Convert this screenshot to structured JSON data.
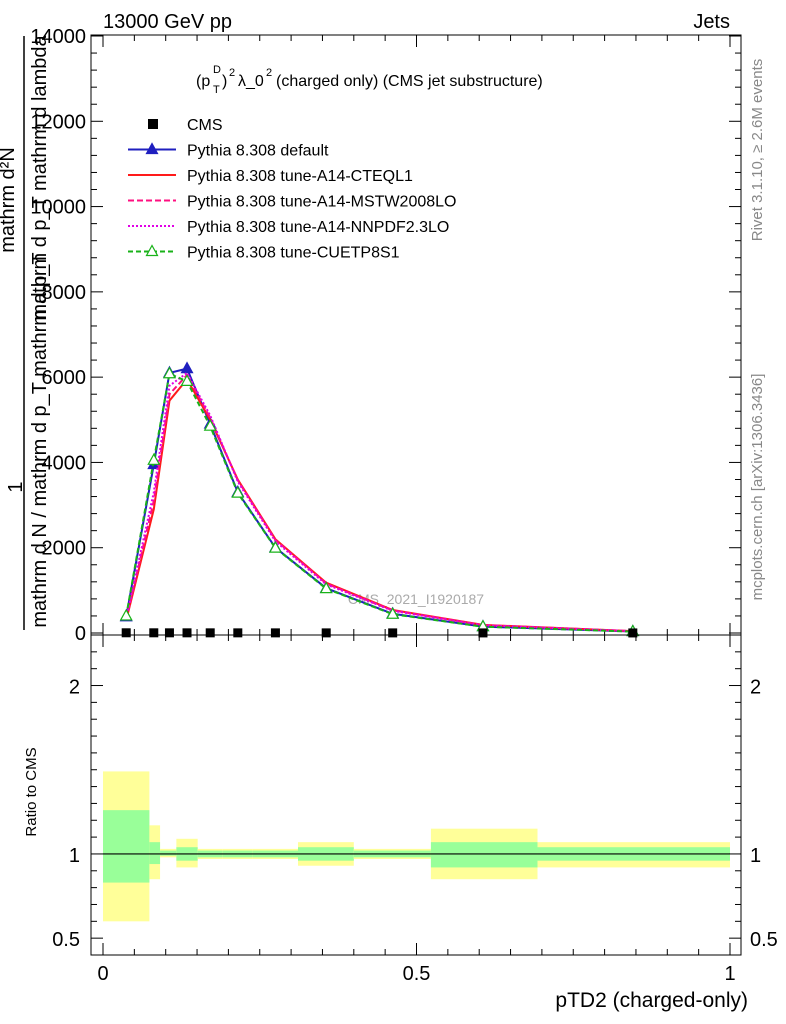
{
  "header": {
    "left": "13000 GeV pp",
    "right": "Jets"
  },
  "side_labels": {
    "rivet": "Rivet 3.1.10, ≥ 2.6M events",
    "mcplots": "mcplots.cern.ch [arXiv:1306.3436]"
  },
  "ylabel_main": {
    "numerator_one": "1",
    "numerator_frac": "mathrm d²N",
    "numerator_tail": "mathrm d p_T mathrm d lambda",
    "denominator": "mathrm d N / mathrm d p_T mathrm d p_T"
  },
  "chart_data": [
    {
      "type": "line",
      "title": "(p_T^D)^2 λ_0^2 (charged only) (CMS jet substructure)",
      "watermark": "CMS_2021_I1920187",
      "xlim": [
        0,
        1
      ],
      "ylim": [
        0,
        14000
      ],
      "yticks": [
        {
          "value": 0,
          "label": "0"
        },
        {
          "value": 2000,
          "label": "2000"
        },
        {
          "value": 4000,
          "label": "4000"
        },
        {
          "value": 6000,
          "label": "6000"
        },
        {
          "value": 8000,
          "label": "8000"
        },
        {
          "value": 10000,
          "label": "10000"
        },
        {
          "value": 12000,
          "label": "12000"
        },
        {
          "value": 14000,
          "label": "14000"
        }
      ],
      "legend_position": "top-left",
      "data_points": {
        "name": "CMS",
        "x": [
          0.037,
          0.081,
          0.106,
          0.134,
          0.171,
          0.215,
          0.275,
          0.356,
          0.462,
          0.606,
          0.845
        ],
        "y": [
          5.0,
          4.5,
          4.2,
          4.0,
          3.8,
          3.5,
          3.2,
          2.8,
          2.5,
          2.0,
          1.5
        ]
      },
      "series": [
        {
          "name": "Pythia 8.308 default",
          "color": "#1f1fbf",
          "dash": "solid",
          "marker": "triangle-filled",
          "x": [
            0.037,
            0.081,
            0.106,
            0.134,
            0.171,
            0.215,
            0.275,
            0.356,
            0.462,
            0.606,
            0.845
          ],
          "y": [
            380,
            3950,
            6100,
            6200,
            4900,
            3300,
            2000,
            1050,
            450,
            150,
            35
          ]
        },
        {
          "name": "Pythia 8.308 tune-A14-CTEQL1",
          "color": "#ff1a1a",
          "dash": "solid",
          "marker": "none",
          "x": [
            0.037,
            0.081,
            0.106,
            0.134,
            0.171,
            0.215,
            0.275,
            0.356,
            0.462,
            0.606,
            0.845
          ],
          "y": [
            300,
            2900,
            5450,
            5950,
            5000,
            3600,
            2200,
            1180,
            540,
            190,
            45
          ]
        },
        {
          "name": "Pythia 8.308 tune-A14-MSTW2008LO",
          "color": "#ff0f80",
          "dash": "6,3",
          "marker": "none",
          "x": [
            0.037,
            0.081,
            0.106,
            0.134,
            0.171,
            0.215,
            0.275,
            0.356,
            0.462,
            0.606,
            0.845
          ],
          "y": [
            320,
            3100,
            5600,
            6050,
            5050,
            3580,
            2180,
            1160,
            530,
            185,
            44
          ]
        },
        {
          "name": "Pythia 8.308 tune-A14-NNPDF2.3LO",
          "color": "#e100e6",
          "dash": "2,2",
          "marker": "none",
          "x": [
            0.037,
            0.081,
            0.106,
            0.134,
            0.171,
            0.215,
            0.275,
            0.356,
            0.462,
            0.606,
            0.845
          ],
          "y": [
            340,
            3300,
            5800,
            6100,
            5100,
            3550,
            2150,
            1140,
            520,
            180,
            43
          ]
        },
        {
          "name": "Pythia 8.308 tune-CUETP8S1",
          "color": "#19b219",
          "dash": "5,3",
          "marker": "triangle-open",
          "x": [
            0.037,
            0.081,
            0.106,
            0.134,
            0.171,
            0.215,
            0.275,
            0.356,
            0.462,
            0.606,
            0.845
          ],
          "y": [
            400,
            4050,
            6080,
            5900,
            4850,
            3280,
            1990,
            1040,
            440,
            148,
            34
          ]
        }
      ]
    },
    {
      "type": "area",
      "ylabel": "Ratio to CMS",
      "xlabel": "pTD2 (charged-only)",
      "xlim": [
        0,
        1
      ],
      "ylim": [
        0.4,
        2.3
      ],
      "xticks": [
        {
          "value": 0,
          "label": "0"
        },
        {
          "value": 0.5,
          "label": "0.5"
        },
        {
          "value": 1,
          "label": "1"
        }
      ],
      "yticks": [
        {
          "value": 0.5,
          "label": "0.5"
        },
        {
          "value": 1,
          "label": "1"
        },
        {
          "value": 2,
          "label": "2"
        }
      ],
      "reference_value": 1.0,
      "uncertainty_bands": {
        "bin_edges": [
          0.0,
          0.074,
          0.091,
          0.117,
          0.151,
          0.191,
          0.239,
          0.311,
          0.4,
          0.523,
          0.693,
          1.0
        ],
        "outer_low": [
          0.6,
          0.85,
          0.98,
          0.92,
          0.97,
          0.97,
          0.97,
          0.93,
          0.97,
          0.85,
          0.92
        ],
        "outer_high": [
          1.49,
          1.17,
          1.03,
          1.09,
          1.03,
          1.03,
          1.03,
          1.07,
          1.03,
          1.15,
          1.07
        ],
        "inner_low": [
          0.83,
          0.94,
          0.99,
          0.96,
          0.98,
          0.98,
          0.98,
          0.96,
          0.98,
          0.92,
          0.96
        ],
        "inner_high": [
          1.26,
          1.07,
          1.02,
          1.04,
          1.02,
          1.02,
          1.02,
          1.04,
          1.02,
          1.07,
          1.04
        ],
        "outer_color": "#ffff99",
        "inner_color": "#99ff99"
      }
    }
  ]
}
